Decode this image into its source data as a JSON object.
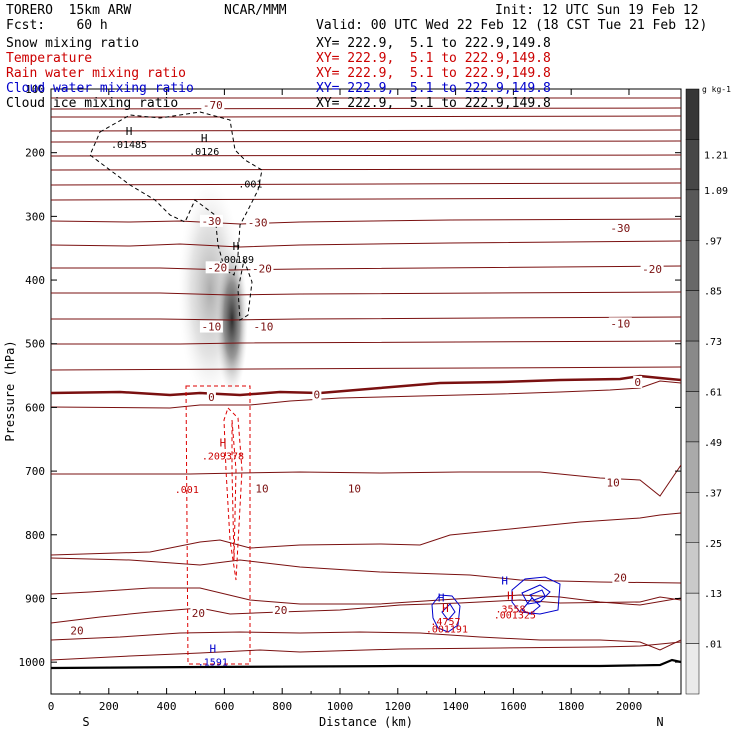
{
  "header": {
    "model": "TORERO  15km ARW",
    "center": "NCAR/MMM",
    "init": "Init: 12 UTC Sun 19 Feb 12",
    "fcst": "Fcst:    60 h",
    "valid": "Valid: 00 UTC Wed 22 Feb 12 (18 CST Tue 21 Feb 12)"
  },
  "legend": [
    {
      "field": "Snow mixing ratio",
      "xsec": "XY= 222.9,  5.1 to 222.9,149.8",
      "color": "#000000"
    },
    {
      "field": "Temperature",
      "xsec": "XY= 222.9,  5.1 to 222.9,149.8",
      "color": "#cc0000"
    },
    {
      "field": "Rain water mixing ratio",
      "xsec": "XY= 222.9,  5.1 to 222.9,149.8",
      "color": "#cc0000"
    },
    {
      "field": "Cloud water mixing ratio",
      "xsec": "XY= 222.9,  5.1 to 222.9,149.8",
      "color": "#0000cc"
    },
    {
      "field": "Cloud ice mixing ratio",
      "xsec": "XY= 222.9,  5.1 to 222.9,149.8",
      "color": "#000000"
    }
  ],
  "colors": {
    "isotherm": "#7a1010",
    "rain_contour": "#dd0000",
    "cloud_water_contour": "#0000cc",
    "ice_contour": "#000000"
  },
  "chart_data": {
    "type": "contour_cross_section",
    "xlabel": "Distance (km)",
    "ylabel": "Pressure (hPa)",
    "xlim": [
      0,
      2180
    ],
    "ylim": [
      1050,
      100
    ],
    "xticks": [
      0,
      200,
      400,
      600,
      800,
      1000,
      1200,
      1400,
      1600,
      1800,
      2000
    ],
    "yticks": [
      1000,
      900,
      800,
      700,
      600,
      500,
      400,
      300,
      200,
      100
    ],
    "left_end_label": "S",
    "right_end_label": "N",
    "colorbar": {
      "units": "g kg-1",
      "labels": [
        "1.21",
        "1.09",
        ".97",
        ".85",
        ".73",
        ".61",
        ".49",
        ".37",
        ".25",
        ".13",
        ".01"
      ]
    },
    "isotherm_labels": [
      {
        "text": "-70",
        "x": 560,
        "p": 125
      },
      {
        "text": "-30",
        "x": 555,
        "p": 307
      },
      {
        "text": "-30",
        "x": 715,
        "p": 310
      },
      {
        "text": "-30",
        "x": 1970,
        "p": 318
      },
      {
        "text": "-20",
        "x": 575,
        "p": 380
      },
      {
        "text": "-20",
        "x": 730,
        "p": 382
      },
      {
        "text": "-20",
        "x": 2080,
        "p": 383
      },
      {
        "text": "-10",
        "x": 555,
        "p": 473
      },
      {
        "text": "-10",
        "x": 735,
        "p": 473
      },
      {
        "text": "-10",
        "x": 1970,
        "p": 468
      },
      {
        "text": "0",
        "x": 555,
        "p": 584
      },
      {
        "text": "0",
        "x": 920,
        "p": 580
      },
      {
        "text": "0",
        "x": 2030,
        "p": 560
      },
      {
        "text": "10",
        "x": 730,
        "p": 727
      },
      {
        "text": "10",
        "x": 1050,
        "p": 727
      },
      {
        "text": "10",
        "x": 1945,
        "p": 718
      },
      {
        "text": "20",
        "x": 510,
        "p": 923
      },
      {
        "text": "20",
        "x": 795,
        "p": 918
      },
      {
        "text": "20",
        "x": 1970,
        "p": 867
      },
      {
        "text": "20",
        "x": 90,
        "p": 950
      }
    ],
    "maxima": [
      {
        "marker": "H",
        "value": ".01485",
        "x": 270,
        "p": 172,
        "color": "#000000"
      },
      {
        "marker": "H",
        "value": ".0126",
        "x": 530,
        "p": 183,
        "color": "#000000"
      },
      {
        "marker": "",
        "value": ".001",
        "x": 690,
        "p": 248,
        "color": "#000000"
      },
      {
        "marker": "H",
        "value": ".00189",
        "x": 640,
        "p": 353,
        "color": "#000000"
      },
      {
        "marker": "H",
        "value": ".209378",
        "x": 595,
        "p": 661,
        "color": "#cc0000"
      },
      {
        "marker": "",
        "value": ".001",
        "x": 470,
        "p": 728,
        "color": "#cc0000"
      },
      {
        "marker": "H",
        "value": ".4757",
        "x": 1365,
        "p": 921,
        "color": "#cc0000"
      },
      {
        "marker": "",
        "value": ".001191",
        "x": 1370,
        "p": 947,
        "color": "#cc0000"
      },
      {
        "marker": "H",
        "value": ".3558",
        "x": 1590,
        "p": 902,
        "color": "#cc0000"
      },
      {
        "marker": "",
        "value": ".001325",
        "x": 1605,
        "p": 925,
        "color": "#cc0000"
      },
      {
        "marker": "H",
        "value": "",
        "x": 1350,
        "p": 905,
        "color": "#0000cc"
      },
      {
        "marker": "H",
        "value": "",
        "x": 1570,
        "p": 878,
        "color": "#0000cc"
      },
      {
        "marker": "H",
        "value": ".1591",
        "x": 560,
        "p": 985,
        "color": "#0000cc"
      }
    ]
  }
}
